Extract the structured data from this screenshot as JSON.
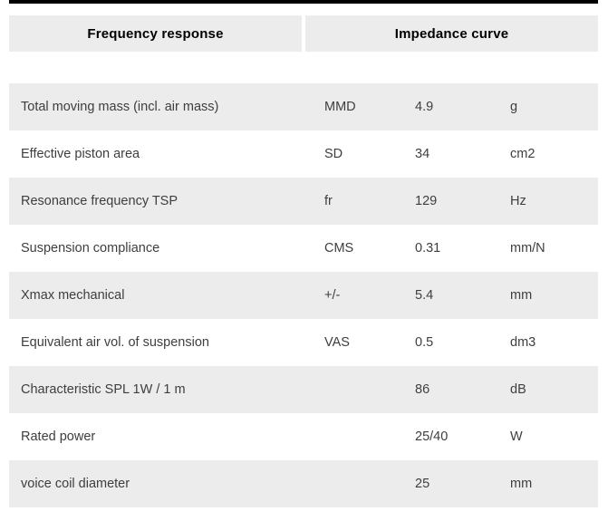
{
  "colors": {
    "top_bar": "#000000",
    "tab_bg": "#ececec",
    "row_stripe_bg": "#ececec",
    "row_text": "#3e3e3e",
    "tab_text": "#000000"
  },
  "tabs": [
    {
      "label": "Frequency response"
    },
    {
      "label": "Impedance curve"
    }
  ],
  "spec_table": {
    "rows": [
      {
        "label": "Total moving mass (incl. air mass)",
        "symbol": "MMD",
        "value": "4.9",
        "unit": "g"
      },
      {
        "label": "Effective piston area",
        "symbol": "SD",
        "value": "34",
        "unit": "cm2"
      },
      {
        "label": "Resonance frequency TSP",
        "symbol": "fr",
        "value": "129",
        "unit": "Hz"
      },
      {
        "label": "Suspension compliance",
        "symbol": "CMS",
        "value": "0.31",
        "unit": "mm/N"
      },
      {
        "label": "Xmax mechanical",
        "symbol": "+/-",
        "value": "5.4",
        "unit": "mm"
      },
      {
        "label": "Equivalent air vol. of suspension",
        "symbol": "VAS",
        "value": "0.5",
        "unit": "dm3"
      },
      {
        "label": "Characteristic SPL 1W / 1 m",
        "symbol": "",
        "value": "86",
        "unit": "dB"
      },
      {
        "label": "Rated power",
        "symbol": "",
        "value": "25/40",
        "unit": "W"
      },
      {
        "label": "voice coil diameter",
        "symbol": "",
        "value": "25",
        "unit": "mm"
      }
    ]
  }
}
